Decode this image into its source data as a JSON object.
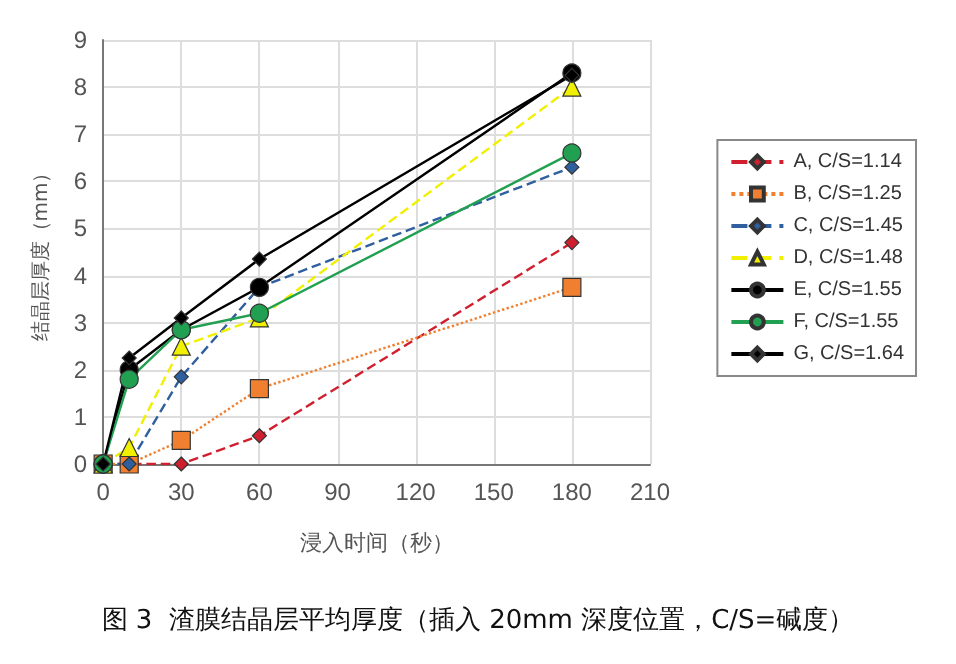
{
  "chart_data": {
    "type": "line",
    "title": "图 3  渣膜结晶层平均厚度（插入 20mm 深度位置，C/S=碱度）",
    "xlabel": "浸入时间（秒）",
    "ylabel": "结晶层厚度（mm）",
    "x": [
      0,
      10,
      30,
      60,
      180
    ],
    "series": [
      {
        "name": "A, C/S=1.14",
        "color": "#d0202f",
        "marker": "diamond",
        "line_style": "dashed",
        "values": [
          0,
          0,
          0,
          0.6,
          4.7
        ]
      },
      {
        "name": "B, C/S=1.25",
        "color": "#f08030",
        "marker": "square",
        "line_style": "dotted",
        "values": [
          0,
          0,
          0.5,
          1.6,
          3.75
        ]
      },
      {
        "name": "C, C/S=1.45",
        "color": "#2f5f9f",
        "marker": "diamond",
        "line_style": "dashed",
        "values": [
          0,
          0,
          1.85,
          3.75,
          6.3
        ]
      },
      {
        "name": "D, C/S=1.48",
        "color": "#f0f000",
        "marker": "triangle",
        "line_style": "dashed",
        "values": [
          0,
          0.35,
          2.5,
          3.1,
          8.0
        ]
      },
      {
        "name": "E, C/S=1.55",
        "color": "#000000",
        "marker": "circle",
        "line_style": "solid",
        "values": [
          0,
          2.0,
          2.85,
          3.75,
          8.3
        ]
      },
      {
        "name": "F, C/S=1.55",
        "color": "#20a050",
        "marker": "circle",
        "line_style": "solid",
        "values": [
          0,
          1.8,
          2.85,
          3.2,
          6.6
        ]
      },
      {
        "name": "G, C/S=1.64",
        "color": "#000000",
        "marker": "diamond",
        "line_style": "solid",
        "values": [
          0,
          2.25,
          3.1,
          4.35,
          8.25
        ]
      }
    ],
    "xlim": [
      0,
      210
    ],
    "xticks": [
      0,
      30,
      60,
      90,
      120,
      150,
      180,
      210
    ],
    "ylim": [
      0,
      9
    ],
    "yticks": [
      0,
      1,
      2,
      3,
      4,
      5,
      6,
      7,
      8,
      9
    ],
    "grid": true,
    "legend": "right"
  }
}
